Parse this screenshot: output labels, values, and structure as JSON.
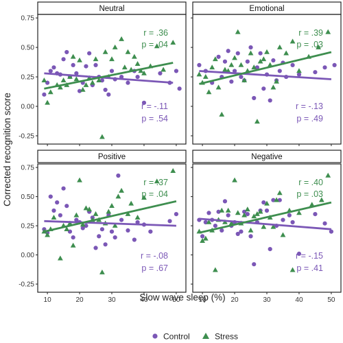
{
  "chart_data": {
    "type": "scatter",
    "xlabel": "Slow wave sleep (%)",
    "ylabel": "Corrected recognition score",
    "xlim": [
      7,
      53
    ],
    "ylim": [
      -0.32,
      0.78
    ],
    "xticks": [
      10,
      20,
      30,
      40,
      50
    ],
    "yticks": [
      -0.25,
      0.0,
      0.25,
      0.5,
      0.75
    ],
    "xtick_labels": [
      "10",
      "20",
      "30",
      "40",
      "50"
    ],
    "ytick_labels": [
      "-0.25",
      "0.00",
      "0.25",
      "0.50",
      "0.75"
    ],
    "grid": false,
    "legend_position": "bottom",
    "legend": [
      {
        "label": "Control",
        "marker": "circle",
        "color": "#7B57B6"
      },
      {
        "label": "Stress",
        "marker": "triangle",
        "color": "#3E8E4F"
      }
    ],
    "colors": {
      "control": "#7B57B6",
      "stress": "#3E8E4F"
    },
    "panels": [
      {
        "title": "Neutral",
        "stress_r": "r = .36",
        "stress_p": "p = .04",
        "control_r": "r = -.11",
        "control_p": "p = .54",
        "stress_fit": [
          [
            9,
            0.15
          ],
          [
            49,
            0.37
          ]
        ],
        "control_fit": [
          [
            9,
            0.28
          ],
          [
            49,
            0.2
          ]
        ],
        "control": [
          [
            9,
            0.1
          ],
          [
            10,
            0.2
          ],
          [
            11,
            0.3
          ],
          [
            12,
            0.33
          ],
          [
            13,
            0.28
          ],
          [
            14,
            0.27
          ],
          [
            15,
            0.4
          ],
          [
            16,
            0.46
          ],
          [
            17,
            0.25
          ],
          [
            18,
            0.35
          ],
          [
            19,
            0.28
          ],
          [
            20,
            0.13
          ],
          [
            21,
            0.2
          ],
          [
            22,
            0.34
          ],
          [
            23,
            0.45
          ],
          [
            24,
            0.18
          ],
          [
            25,
            0.35
          ],
          [
            26,
            0.25
          ],
          [
            27,
            0.22
          ],
          [
            28,
            0.14
          ],
          [
            29,
            0.1
          ],
          [
            30,
            0.3
          ],
          [
            31,
            0.23
          ],
          [
            33,
            0.25
          ],
          [
            35,
            0.2
          ],
          [
            37,
            0.3
          ],
          [
            38,
            0.25
          ],
          [
            40,
            0.03
          ],
          [
            45,
            0.28
          ],
          [
            48,
            0.2
          ],
          [
            50,
            0.3
          ],
          [
            51,
            0.15
          ]
        ],
        "stress": [
          [
            9,
            0.22
          ],
          [
            10,
            0.03
          ],
          [
            11,
            0.12
          ],
          [
            13,
            0.18
          ],
          [
            14,
            0.16
          ],
          [
            15,
            0.22
          ],
          [
            16,
            0.18
          ],
          [
            17,
            0.25
          ],
          [
            18,
            0.42
          ],
          [
            19,
            0.23
          ],
          [
            20,
            0.39
          ],
          [
            21,
            0.14
          ],
          [
            22,
            0.18
          ],
          [
            23,
            0.24
          ],
          [
            24,
            0.2
          ],
          [
            25,
            0.4
          ],
          [
            26,
            0.22
          ],
          [
            27,
            -0.26
          ],
          [
            28,
            0.46
          ],
          [
            29,
            0.25
          ],
          [
            30,
            0.4
          ],
          [
            31,
            0.5
          ],
          [
            33,
            0.57
          ],
          [
            34,
            0.33
          ],
          [
            35,
            0.46
          ],
          [
            36,
            0.31
          ],
          [
            37,
            0.42
          ],
          [
            38,
            0.36
          ],
          [
            39,
            0.3
          ],
          [
            40,
            0.28
          ],
          [
            42,
            0.34
          ],
          [
            44,
            0.51
          ],
          [
            46,
            0.31
          ],
          [
            49,
            0.54
          ]
        ]
      },
      {
        "title": "Emotional",
        "stress_r": "r = .39",
        "stress_p": "p = .03",
        "control_r": "r = -.13",
        "control_p": "p = .49",
        "stress_fit": [
          [
            9,
            0.19
          ],
          [
            50,
            0.46
          ]
        ],
        "control_fit": [
          [
            9,
            0.3
          ],
          [
            50,
            0.23
          ]
        ],
        "control": [
          [
            9,
            0.35
          ],
          [
            11,
            0.3
          ],
          [
            13,
            0.2
          ],
          [
            15,
            0.42
          ],
          [
            16,
            0.25
          ],
          [
            17,
            0.38
          ],
          [
            18,
            0.47
          ],
          [
            19,
            0.21
          ],
          [
            20,
            0.3
          ],
          [
            21,
            0.45
          ],
          [
            22,
            0.25
          ],
          [
            23,
            0.22
          ],
          [
            24,
            0.38
          ],
          [
            25,
            0.5
          ],
          [
            26,
            0.07
          ],
          [
            27,
            0.33
          ],
          [
            28,
            0.45
          ],
          [
            29,
            0.15
          ],
          [
            30,
            0.27
          ],
          [
            31,
            0.05
          ],
          [
            32,
            0.39
          ],
          [
            33,
            0.22
          ],
          [
            34,
            0.3
          ],
          [
            35,
            0.37
          ],
          [
            36,
            0.25
          ],
          [
            38,
            0.35
          ],
          [
            40,
            0.27
          ],
          [
            45,
            0.29
          ],
          [
            48,
            0.33
          ],
          [
            51,
            0.35
          ]
        ],
        "stress": [
          [
            9,
            0.27
          ],
          [
            10,
            0.2
          ],
          [
            11,
            0.25
          ],
          [
            12,
            0.12
          ],
          [
            13,
            0.33
          ],
          [
            14,
            0.4
          ],
          [
            15,
            0.16
          ],
          [
            16,
            -0.07
          ],
          [
            17,
            0.31
          ],
          [
            18,
            0.3
          ],
          [
            19,
            0.35
          ],
          [
            20,
            0.41
          ],
          [
            21,
            0.63
          ],
          [
            22,
            0.35
          ],
          [
            23,
            0.22
          ],
          [
            24,
            0.3
          ],
          [
            25,
            0.45
          ],
          [
            26,
            0.33
          ],
          [
            27,
            -0.13
          ],
          [
            28,
            0.38
          ],
          [
            29,
            0.4
          ],
          [
            30,
            0.46
          ],
          [
            31,
            0.35
          ],
          [
            32,
            0.16
          ],
          [
            33,
            0.21
          ],
          [
            34,
            0.5
          ],
          [
            36,
            0.45
          ],
          [
            38,
            0.55
          ],
          [
            40,
            0.3
          ],
          [
            43,
            0.42
          ],
          [
            46,
            0.5
          ],
          [
            49,
            0.63
          ]
        ]
      },
      {
        "title": "Positive",
        "stress_r": "r = .37",
        "stress_p": "p = .04",
        "control_r": "r = -.08",
        "control_p": "p = .67",
        "stress_fit": [
          [
            9,
            0.2
          ],
          [
            50,
            0.46
          ]
        ],
        "control_fit": [
          [
            9,
            0.29
          ],
          [
            50,
            0.25
          ]
        ],
        "control": [
          [
            9,
            0.22
          ],
          [
            10,
            0.19
          ],
          [
            11,
            0.5
          ],
          [
            12,
            0.38
          ],
          [
            13,
            0.45
          ],
          [
            14,
            0.34
          ],
          [
            15,
            0.57
          ],
          [
            16,
            0.42
          ],
          [
            17,
            0.2
          ],
          [
            18,
            0.15
          ],
          [
            19,
            0.3
          ],
          [
            20,
            0.28
          ],
          [
            21,
            0.23
          ],
          [
            22,
            0.25
          ],
          [
            23,
            0.37
          ],
          [
            24,
            0.32
          ],
          [
            25,
            0.06
          ],
          [
            26,
            0.16
          ],
          [
            27,
            0.22
          ],
          [
            28,
            0.09
          ],
          [
            29,
            0.34
          ],
          [
            30,
            0.2
          ],
          [
            31,
            0.15
          ],
          [
            32,
            0.68
          ],
          [
            33,
            0.3
          ],
          [
            35,
            0.21
          ],
          [
            37,
            0.13
          ],
          [
            38,
            0.28
          ],
          [
            40,
            0.26
          ],
          [
            42,
            0.2
          ],
          [
            48,
            0.29
          ],
          [
            50,
            0.35
          ]
        ],
        "stress": [
          [
            9,
            0.2
          ],
          [
            10,
            0.17
          ],
          [
            11,
            0.22
          ],
          [
            12,
            0.32
          ],
          [
            14,
            -0.03
          ],
          [
            15,
            0.25
          ],
          [
            16,
            0.22
          ],
          [
            17,
            0.27
          ],
          [
            18,
            0.08
          ],
          [
            19,
            0.34
          ],
          [
            20,
            0.64
          ],
          [
            21,
            0.26
          ],
          [
            22,
            0.4
          ],
          [
            23,
            0.39
          ],
          [
            24,
            0.3
          ],
          [
            25,
            0.35
          ],
          [
            26,
            0.3
          ],
          [
            27,
            -0.15
          ],
          [
            28,
            0.27
          ],
          [
            29,
            0.37
          ],
          [
            30,
            0.42
          ],
          [
            31,
            0.25
          ],
          [
            32,
            0.5
          ],
          [
            33,
            0.55
          ],
          [
            35,
            0.35
          ],
          [
            36,
            0.44
          ],
          [
            38,
            0.32
          ],
          [
            40,
            0.49
          ],
          [
            44,
            0.63
          ],
          [
            49,
            0.72
          ]
        ]
      },
      {
        "title": "Negative",
        "stress_r": "r = .40",
        "stress_p": "p = .03",
        "control_r": "r = -.15",
        "control_p": "p = .41",
        "stress_fit": [
          [
            9,
            0.19
          ],
          [
            50,
            0.45
          ]
        ],
        "control_fit": [
          [
            9,
            0.31
          ],
          [
            50,
            0.22
          ]
        ],
        "control": [
          [
            9,
            0.3
          ],
          [
            10,
            0.16
          ],
          [
            11,
            0.28
          ],
          [
            12,
            0.36
          ],
          [
            13,
            0.3
          ],
          [
            14,
            0.25
          ],
          [
            15,
            0.37
          ],
          [
            16,
            0.21
          ],
          [
            17,
            0.46
          ],
          [
            18,
            0.34
          ],
          [
            19,
            0.25
          ],
          [
            20,
            0.28
          ],
          [
            21,
            0.18
          ],
          [
            22,
            0.2
          ],
          [
            23,
            0.37
          ],
          [
            24,
            0.35
          ],
          [
            25,
            0.16
          ],
          [
            26,
            -0.08
          ],
          [
            27,
            0.28
          ],
          [
            28,
            0.38
          ],
          [
            29,
            0.45
          ],
          [
            30,
            0.38
          ],
          [
            31,
            0.05
          ],
          [
            32,
            0.47
          ],
          [
            33,
            0.25
          ],
          [
            34,
            0.47
          ],
          [
            35,
            0.3
          ],
          [
            37,
            0.34
          ],
          [
            38,
            0.28
          ],
          [
            40,
            0.01
          ],
          [
            45,
            0.35
          ],
          [
            48,
            0.27
          ],
          [
            50,
            0.2
          ]
        ],
        "stress": [
          [
            9,
            0.2
          ],
          [
            10,
            0.12
          ],
          [
            11,
            0.14
          ],
          [
            12,
            0.28
          ],
          [
            13,
            0.21
          ],
          [
            14,
            -0.13
          ],
          [
            15,
            0.3
          ],
          [
            16,
            0.38
          ],
          [
            17,
            0.28
          ],
          [
            18,
            0.38
          ],
          [
            19,
            0.27
          ],
          [
            20,
            0.64
          ],
          [
            21,
            0.36
          ],
          [
            22,
            0.27
          ],
          [
            23,
            0.34
          ],
          [
            24,
            0.39
          ],
          [
            25,
            0.21
          ],
          [
            26,
            0.33
          ],
          [
            27,
            0.35
          ],
          [
            28,
            0.37
          ],
          [
            29,
            0.24
          ],
          [
            30,
            0.44
          ],
          [
            31,
            0.32
          ],
          [
            32,
            0.24
          ],
          [
            33,
            0.47
          ],
          [
            34,
            0.53
          ],
          [
            35,
            0.17
          ],
          [
            37,
            0.38
          ],
          [
            38,
            -0.13
          ],
          [
            40,
            0.36
          ],
          [
            44,
            0.43
          ],
          [
            47,
            0.47
          ],
          [
            49,
            0.68
          ]
        ]
      }
    ]
  }
}
